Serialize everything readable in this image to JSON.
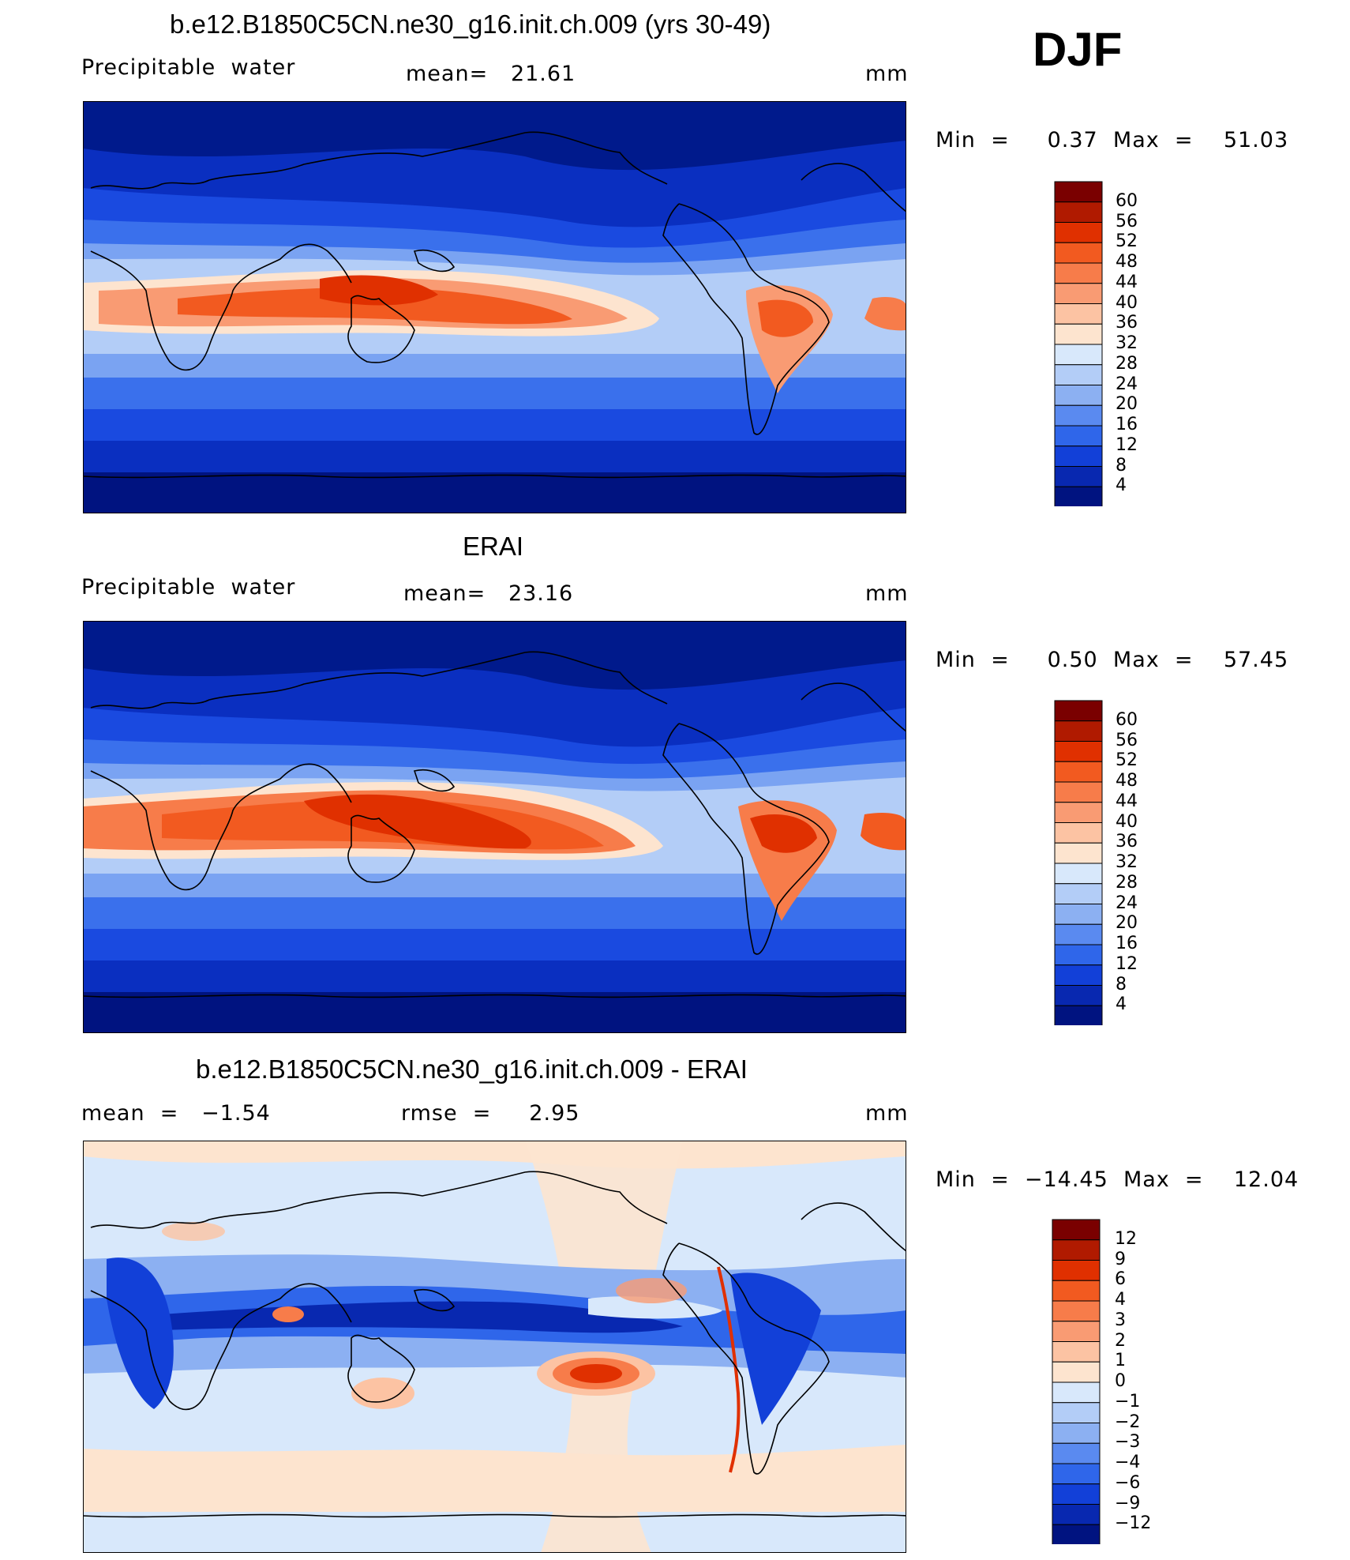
{
  "season": "DJF",
  "panels": [
    {
      "title": "b.e12.B1850C5CN.ne30_g16.init.ch.009 (yrs 30-49)",
      "left_label": "Precipitable  water",
      "center_label": "mean=   21.61",
      "units": "mm",
      "minmax": "Min  =     0.37  Max  =    51.03",
      "colorbar": {
        "labels": [
          "60",
          "56",
          "52",
          "48",
          "44",
          "40",
          "36",
          "32",
          "28",
          "24",
          "20",
          "16",
          "12",
          "8",
          "4"
        ],
        "colors": [
          "#7a0000",
          "#b01a00",
          "#e03000",
          "#f25a20",
          "#f77c4a",
          "#f99b73",
          "#fcc3a3",
          "#fde4cf",
          "#d8e8fb",
          "#b3cdf7",
          "#8cb0f2",
          "#5a8af0",
          "#2f66ea",
          "#1240d8",
          "#0828b0",
          "#001380"
        ]
      }
    },
    {
      "title": "ERAI",
      "left_label": "Precipitable  water",
      "center_label": "mean=   23.16",
      "units": "mm",
      "minmax": "Min  =     0.50  Max  =    57.45",
      "colorbar": {
        "labels": [
          "60",
          "56",
          "52",
          "48",
          "44",
          "40",
          "36",
          "32",
          "28",
          "24",
          "20",
          "16",
          "12",
          "8",
          "4"
        ],
        "colors": [
          "#7a0000",
          "#b01a00",
          "#e03000",
          "#f25a20",
          "#f77c4a",
          "#f99b73",
          "#fcc3a3",
          "#fde4cf",
          "#d8e8fb",
          "#b3cdf7",
          "#8cb0f2",
          "#5a8af0",
          "#2f66ea",
          "#1240d8",
          "#0828b0",
          "#001380"
        ]
      }
    },
    {
      "title": "b.e12.B1850C5CN.ne30_g16.init.ch.009 - ERAI",
      "left_label": "mean  =   −1.54",
      "center_label": "rmse  =     2.95",
      "units": "mm",
      "minmax": "Min  =  −14.45  Max  =    12.04",
      "colorbar": {
        "labels": [
          "12",
          "9",
          "6",
          "4",
          "3",
          "2",
          "1",
          "0",
          "−1",
          "−2",
          "−3",
          "−4",
          "−6",
          "−9",
          "−12"
        ],
        "colors": [
          "#7a0000",
          "#b01a00",
          "#e03000",
          "#f25a20",
          "#f77c4a",
          "#f99b73",
          "#fcc3a3",
          "#fde4cf",
          "#d8e8fb",
          "#b3cdf7",
          "#8cb0f2",
          "#5a8af0",
          "#2f66ea",
          "#1240d8",
          "#0828b0",
          "#001380"
        ]
      }
    }
  ]
}
